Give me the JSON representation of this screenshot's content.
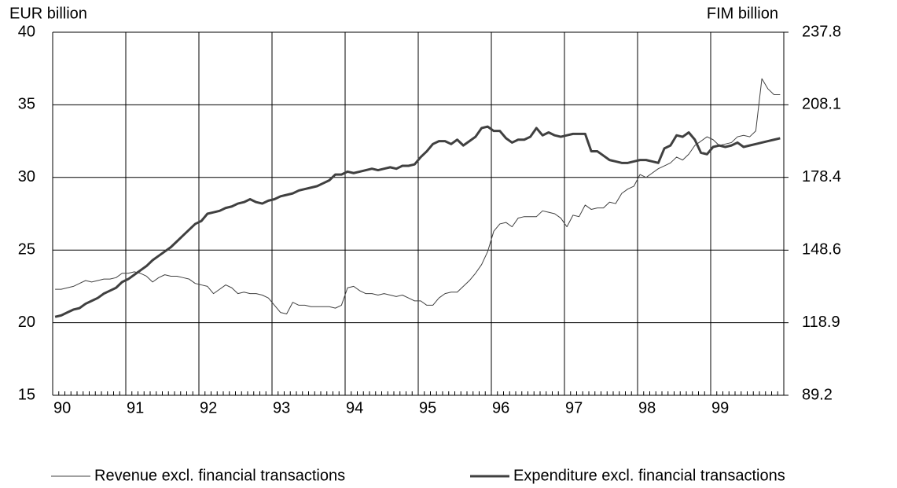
{
  "chart_data": {
    "type": "line",
    "y_label": "EUR billion",
    "y2_label": "FIM billion",
    "categories": [
      "90",
      null,
      null,
      null,
      null,
      null,
      null,
      null,
      null,
      null,
      null,
      null,
      "91",
      null,
      null,
      null,
      null,
      null,
      null,
      null,
      null,
      null,
      null,
      null,
      "92",
      null,
      null,
      null,
      null,
      null,
      null,
      null,
      null,
      null,
      null,
      null,
      "93",
      null,
      null,
      null,
      null,
      null,
      null,
      null,
      null,
      null,
      null,
      null,
      "94",
      null,
      null,
      null,
      null,
      null,
      null,
      null,
      null,
      null,
      null,
      null,
      "95",
      null,
      null,
      null,
      null,
      null,
      null,
      null,
      null,
      null,
      null,
      null,
      "96",
      null,
      null,
      null,
      null,
      null,
      null,
      null,
      null,
      null,
      null,
      null,
      "97",
      null,
      null,
      null,
      null,
      null,
      null,
      null,
      null,
      null,
      null,
      null,
      "98",
      null,
      null,
      null,
      null,
      null,
      null,
      null,
      null,
      null,
      null,
      null,
      "99",
      null,
      null,
      null,
      null,
      null,
      null,
      null,
      null,
      null,
      null,
      null
    ],
    "series": [
      {
        "name": "Revenue excl. financial transactions",
        "color": "#404040",
        "linewidth": 1,
        "values": [
          22.3,
          22.3,
          22.4,
          22.5,
          22.7,
          22.9,
          22.8,
          22.9,
          23.0,
          23.0,
          23.1,
          23.4,
          23.4,
          23.5,
          23.4,
          23.2,
          22.8,
          23.1,
          23.3,
          23.2,
          23.2,
          23.1,
          23.0,
          22.7,
          22.6,
          22.5,
          22.0,
          22.3,
          22.6,
          22.4,
          22.0,
          22.1,
          22.0,
          22.0,
          21.9,
          21.7,
          21.2,
          20.7,
          20.6,
          21.4,
          21.2,
          21.2,
          21.1,
          21.1,
          21.1,
          21.1,
          21.0,
          21.2,
          22.4,
          22.5,
          22.2,
          22.0,
          22.0,
          21.9,
          22.0,
          21.9,
          21.8,
          21.9,
          21.7,
          21.5,
          21.5,
          21.2,
          21.2,
          21.7,
          22.0,
          22.1,
          22.1,
          22.5,
          22.9,
          23.4,
          24.0,
          24.9,
          26.3,
          26.8,
          26.9,
          26.6,
          27.2,
          27.3,
          27.3,
          27.3,
          27.7,
          27.6,
          27.5,
          27.2,
          26.6,
          27.4,
          27.3,
          28.1,
          27.8,
          27.9,
          27.9,
          28.3,
          28.2,
          28.9,
          29.2,
          29.4,
          30.2,
          30.0,
          30.3,
          30.6,
          30.8,
          31.0,
          31.4,
          31.2,
          31.6,
          32.2,
          32.5,
          32.8,
          32.6,
          32.2,
          32.3,
          32.4,
          32.8,
          32.9,
          32.8,
          33.2,
          36.8,
          36.1,
          35.7,
          35.7
        ]
      },
      {
        "name": "Expenditure excl. financial transactions",
        "color": "#404040",
        "linewidth": 3,
        "values": [
          20.4,
          20.5,
          20.7,
          20.9,
          21.0,
          21.3,
          21.5,
          21.7,
          22.0,
          22.2,
          22.4,
          22.8,
          23.0,
          23.3,
          23.6,
          23.9,
          24.3,
          24.6,
          24.9,
          25.2,
          25.6,
          26.0,
          26.4,
          26.8,
          27.0,
          27.5,
          27.6,
          27.7,
          27.9,
          28.0,
          28.2,
          28.3,
          28.5,
          28.3,
          28.2,
          28.4,
          28.5,
          28.7,
          28.8,
          28.9,
          29.1,
          29.2,
          29.3,
          29.4,
          29.6,
          29.8,
          30.2,
          30.2,
          30.4,
          30.3,
          30.4,
          30.5,
          30.6,
          30.5,
          30.6,
          30.7,
          30.6,
          30.8,
          30.8,
          30.9,
          31.4,
          31.8,
          32.3,
          32.5,
          32.5,
          32.3,
          32.6,
          32.2,
          32.5,
          32.8,
          33.4,
          33.5,
          33.2,
          33.2,
          32.7,
          32.4,
          32.6,
          32.6,
          32.8,
          33.4,
          32.9,
          33.1,
          32.9,
          32.8,
          32.9,
          33.0,
          33.0,
          33.0,
          31.8,
          31.8,
          31.5,
          31.2,
          31.1,
          31.0,
          31.0,
          31.1,
          31.2,
          31.2,
          31.1,
          31.0,
          32.0,
          32.2,
          32.9,
          32.8,
          33.1,
          32.6,
          31.7,
          31.6,
          32.1,
          32.2,
          32.1,
          32.2,
          32.4,
          32.1,
          32.2,
          32.3,
          32.4,
          32.5,
          32.6,
          32.7
        ]
      }
    ],
    "ylim": [
      15,
      40
    ],
    "yticks": [
      15,
      20,
      25,
      30,
      35,
      40
    ],
    "y2lim": [
      89.2,
      237.8
    ],
    "y2ticks": [
      89.2,
      118.9,
      148.6,
      178.4,
      208.1,
      237.8
    ],
    "grid": true,
    "legend": "bottom"
  }
}
